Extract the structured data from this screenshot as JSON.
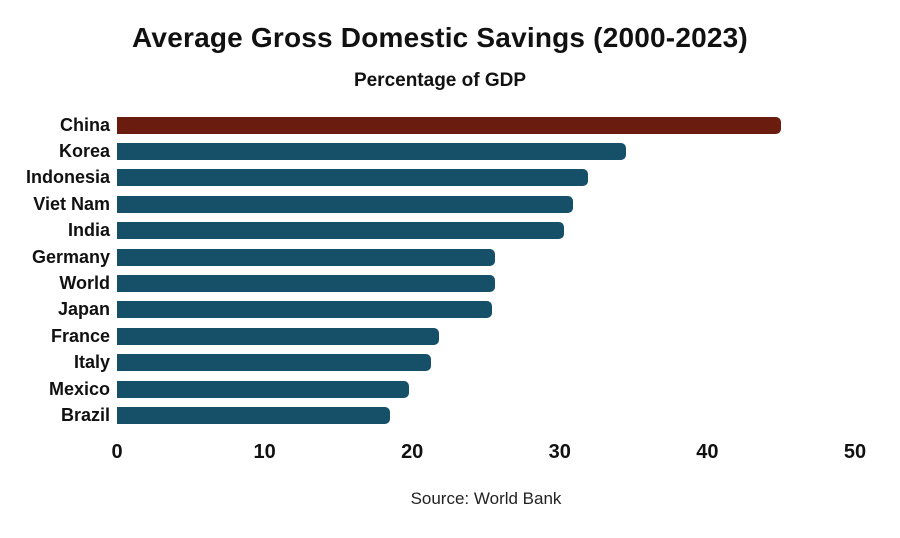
{
  "chart_data": {
    "type": "bar",
    "orientation": "horizontal",
    "title": "Average Gross Domestic Savings (2000-2023)",
    "subtitle": "Percentage of GDP",
    "source": "Source: World Bank",
    "categories": [
      "China",
      "Korea",
      "Indonesia",
      "Viet Nam",
      "India",
      "Germany",
      "World",
      "Japan",
      "France",
      "Italy",
      "Mexico",
      "Brazil"
    ],
    "values": [
      45.0,
      34.5,
      31.9,
      30.9,
      30.3,
      25.6,
      25.6,
      25.4,
      21.8,
      21.3,
      19.8,
      18.5
    ],
    "highlight_category": "China",
    "highlight_color": "#6a1c0e",
    "bar_color": "#155068",
    "text_color": "#111111",
    "xlim": [
      0,
      50
    ],
    "xticks": [
      0,
      10,
      20,
      30,
      40,
      50
    ],
    "xlabel": "",
    "ylabel": "",
    "grid": false,
    "legend": "none"
  }
}
